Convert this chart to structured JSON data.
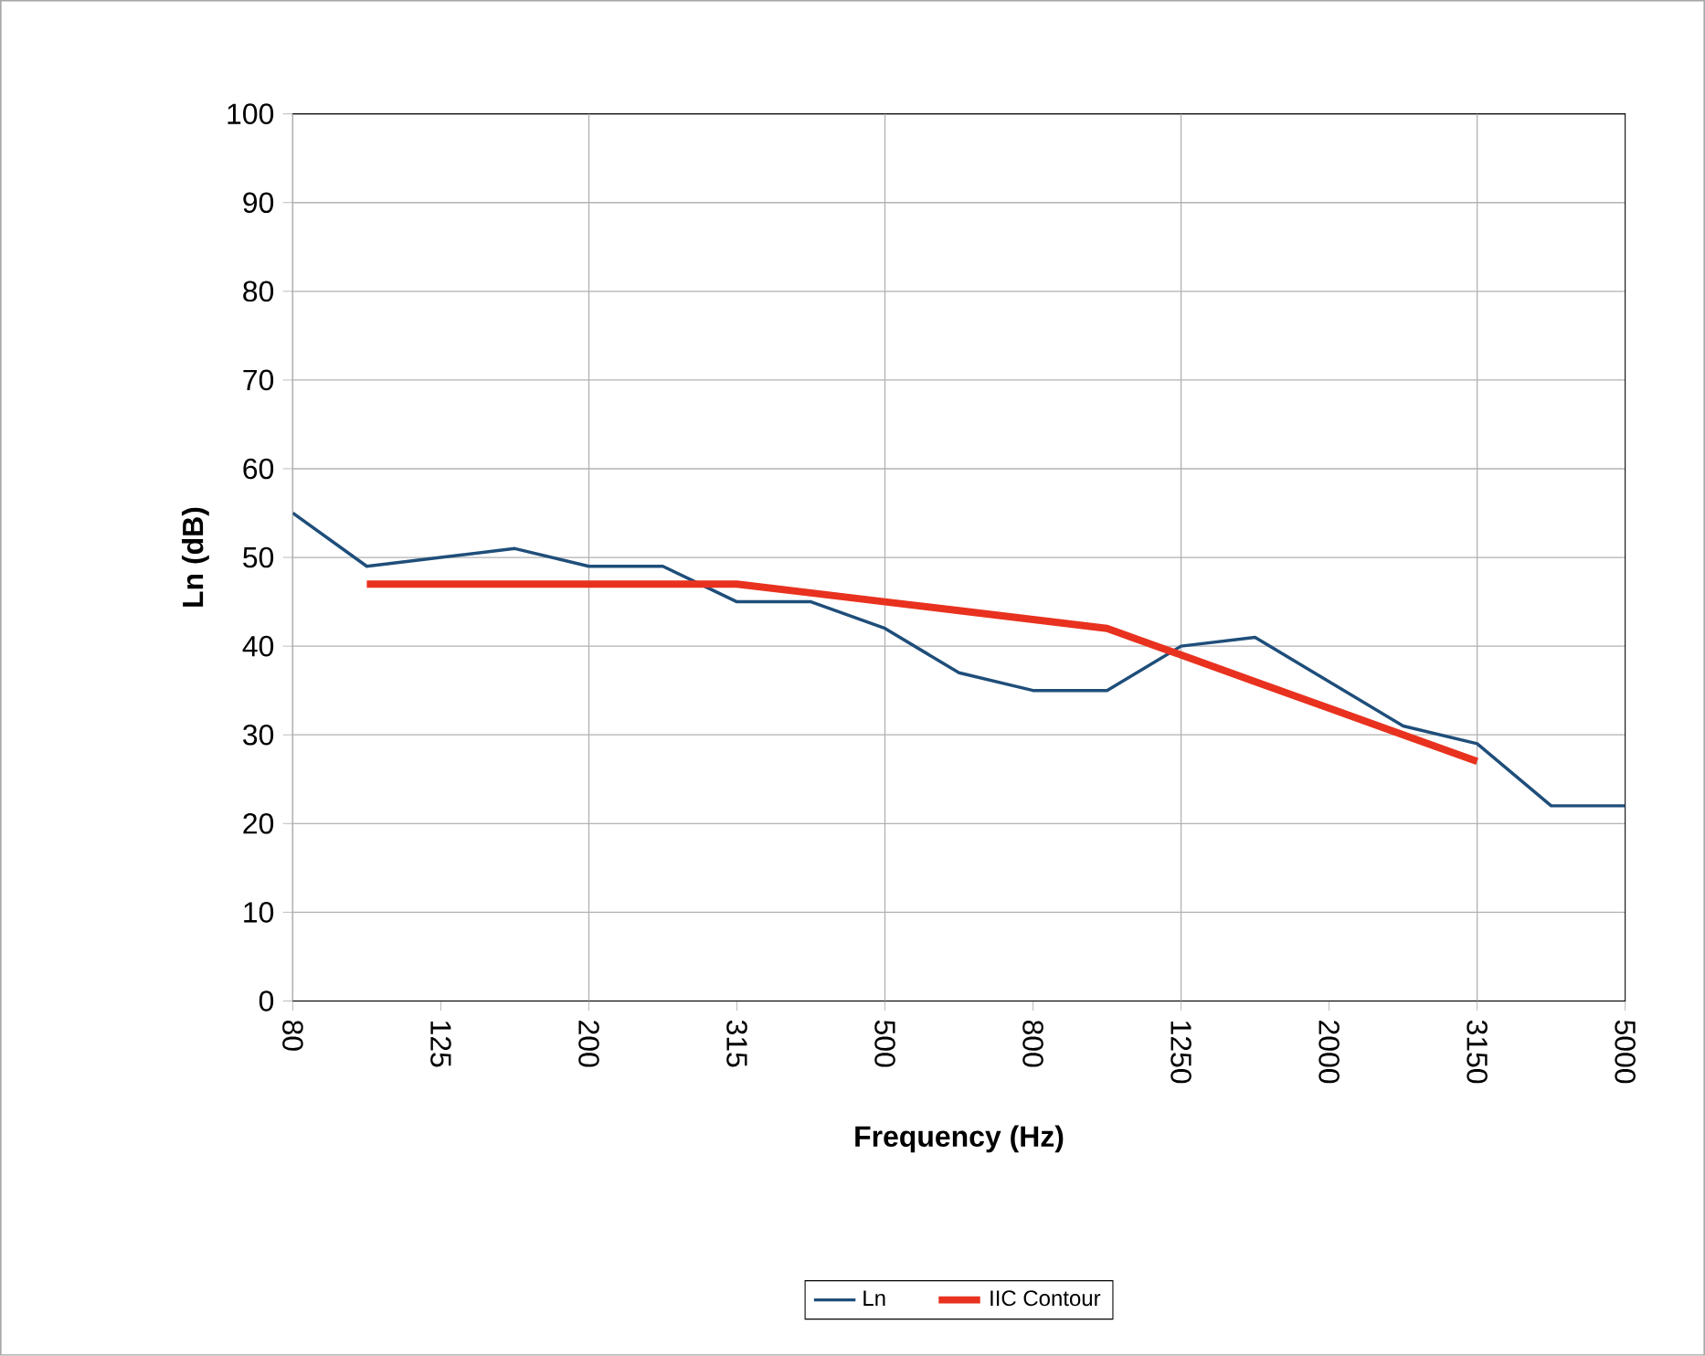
{
  "chart_data": {
    "type": "line",
    "xlabel": "Frequency (Hz)",
    "ylabel": "Ln (dB)",
    "categories": [
      "80",
      null,
      "125",
      null,
      "200",
      null,
      "315",
      null,
      "500",
      null,
      "800",
      null,
      "1250",
      null,
      "2000",
      null,
      "3150",
      null,
      "5000"
    ],
    "series": [
      {
        "name": "Ln",
        "color": "#1f4e7a",
        "values": [
          55,
          49,
          50,
          51,
          49,
          49,
          45,
          45,
          42,
          37,
          35,
          35,
          40,
          41,
          36,
          31,
          29,
          22,
          22
        ]
      },
      {
        "name": "IIC Contour",
        "color": "#e8321f",
        "values": [
          null,
          47,
          47,
          47,
          47,
          47,
          47,
          46,
          45,
          44,
          43,
          42,
          39,
          36,
          33,
          30,
          27,
          null,
          null
        ]
      }
    ],
    "ylim": [
      0,
      100
    ],
    "yticks": [
      0,
      10,
      20,
      30,
      40,
      50,
      60,
      70,
      80,
      90,
      100
    ],
    "grid": true,
    "legend": "bottom",
    "marker": "none",
    "line_style": "solid"
  }
}
